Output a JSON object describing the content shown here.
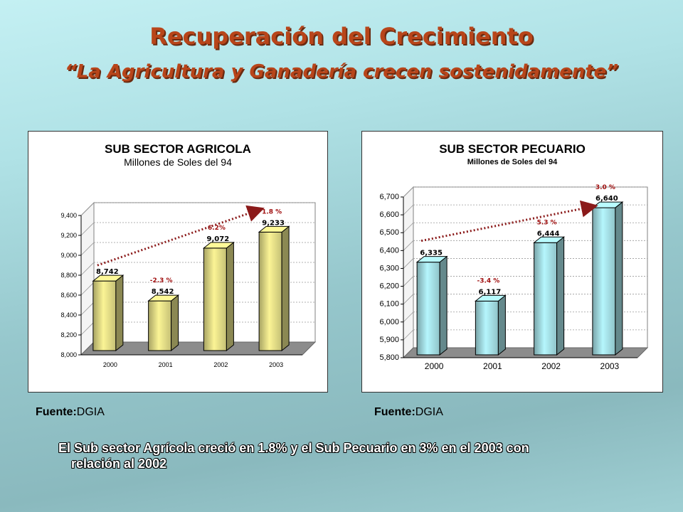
{
  "slide": {
    "title": "Recuperación del Crecimiento",
    "subtitle": "“La Agricultura y Ganadería crecen sostenidamente”",
    "note_line1": "El Sub sector Agrícola creció en 1.8% y el Sub Pecuario en 3% en el 2003 con",
    "note_line2": "relación al 2002"
  },
  "sources": [
    {
      "label": "Fuente:",
      "value": "DGIA"
    },
    {
      "label": "Fuente:",
      "value": "DGIA"
    }
  ],
  "colors": {
    "title": "#b8451a",
    "agri_bar": "#e8e28a",
    "pec_bar": "#a8e4ea",
    "trend_arrow": "#8b1a1a",
    "floor": "#8c8c8c"
  },
  "chart_data": [
    {
      "type": "bar",
      "title": "SUB SECTOR AGRICOLA",
      "subtitle": "Millones de Soles del 94",
      "categories": [
        "2000",
        "2001",
        "2002",
        "2003"
      ],
      "values": [
        8742,
        8542,
        9072,
        9233
      ],
      "value_labels": [
        "8,742",
        "8,542",
        "9,072",
        "9,233"
      ],
      "growth_labels": [
        "",
        "-2.3 %",
        "6.2%",
        "1.8 %"
      ],
      "ylim": [
        8000,
        9400
      ],
      "yticks": [
        8000,
        8200,
        8400,
        8600,
        8800,
        9000,
        9200,
        9400
      ],
      "ytick_labels": [
        "8,000",
        "8,200",
        "8,400",
        "8,600",
        "8,800",
        "9,000",
        "9,200",
        "9,400"
      ],
      "grid": true,
      "legend": "none"
    },
    {
      "type": "bar",
      "title": "SUB SECTOR PECUARIO",
      "subtitle": "Millones de Soles del 94",
      "categories": [
        "2000",
        "2001",
        "2002",
        "2003"
      ],
      "values": [
        6335,
        6117,
        6444,
        6640
      ],
      "value_labels": [
        "6,335",
        "6,117",
        "6,444",
        "6,640"
      ],
      "growth_labels": [
        "",
        "-3.4 %",
        "5.3 %",
        "3.0  %"
      ],
      "ylim": [
        5800,
        6700
      ],
      "yticks": [
        5800,
        5900,
        6000,
        6100,
        6200,
        6300,
        6400,
        6500,
        6600,
        6700
      ],
      "ytick_labels": [
        "5,800",
        "5,900",
        "6,000",
        "6,100",
        "6,200",
        "6,300",
        "6,400",
        "6,500",
        "6,600",
        "6,700"
      ],
      "grid": true,
      "legend": "none"
    }
  ]
}
